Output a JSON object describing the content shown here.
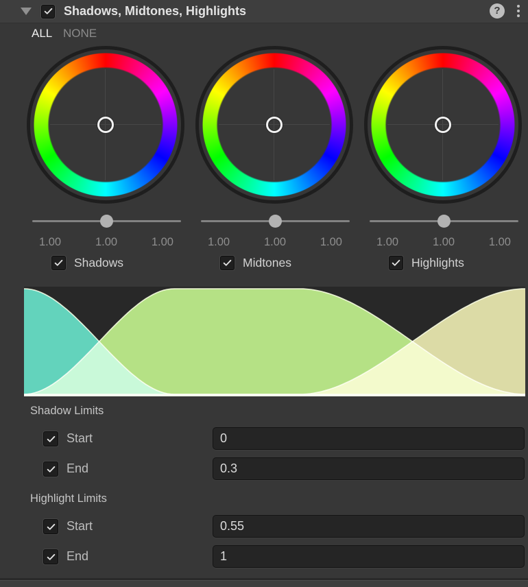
{
  "header": {
    "title": "Shadows, Midtones, Highlights",
    "enabled": true,
    "foldout_state": "expanded",
    "help_icon": "question-mark",
    "menu_icon": "kebab-vertical"
  },
  "quick_select": {
    "all_label": "ALL",
    "none_label": "NONE",
    "active": "ALL"
  },
  "wheels": [
    {
      "label": "Shadows",
      "checked": true,
      "slider_pos": 0.5,
      "values": [
        "1.00",
        "1.00",
        "1.00"
      ]
    },
    {
      "label": "Midtones",
      "checked": true,
      "slider_pos": 0.5,
      "values": [
        "1.00",
        "1.00",
        "1.00"
      ]
    },
    {
      "label": "Highlights",
      "checked": true,
      "slider_pos": 0.5,
      "values": [
        "1.00",
        "1.00",
        "1.00"
      ]
    }
  ],
  "wheel_style": {
    "hue_order_clockwise_from_top": [
      "red",
      "magenta",
      "blue",
      "cyan",
      "green",
      "yellow",
      "red"
    ]
  },
  "chart_data": {
    "type": "area",
    "title": "",
    "x_range": [
      0,
      1
    ],
    "y_range": [
      0,
      1
    ],
    "grid": false,
    "legend": "none",
    "background": "#282828",
    "curves": [
      {
        "name": "shadows",
        "fill": "#46CBAF",
        "description": "weight 1 at x=0 falling to 0 between shadow start and end"
      },
      {
        "name": "midtones",
        "fill": "#A7DB6E",
        "description": "1 - shadows - highlights"
      },
      {
        "name": "highlights",
        "fill": "#D5D495",
        "description": "weight 0 rising to 1 between highlight start and end"
      }
    ],
    "edge_stroke": "rgba(238,246,208,0.9)",
    "shadow_limits": {
      "start": 0,
      "end": 0.3
    },
    "highlight_limits": {
      "start": 0.55,
      "end": 1
    }
  },
  "shadow_limits": {
    "label": "Shadow Limits",
    "rows": [
      {
        "label": "Start",
        "checked": true,
        "value": "0"
      },
      {
        "label": "End",
        "checked": true,
        "value": "0.3"
      }
    ]
  },
  "highlight_limits": {
    "label": "Highlight Limits",
    "rows": [
      {
        "label": "Start",
        "checked": true,
        "value": "0.55"
      },
      {
        "label": "End",
        "checked": true,
        "value": "1"
      }
    ]
  },
  "colors": {
    "panel_bg": "#373737",
    "header_bg": "#3E3E3E",
    "field_bg": "#252525",
    "text_primary": "#E3E3E3",
    "text_muted": "#8B8B8B",
    "graph_shadows": "#63D4BC",
    "graph_midtones": "#B5E185",
    "graph_highlights": "#DCDBA6"
  }
}
